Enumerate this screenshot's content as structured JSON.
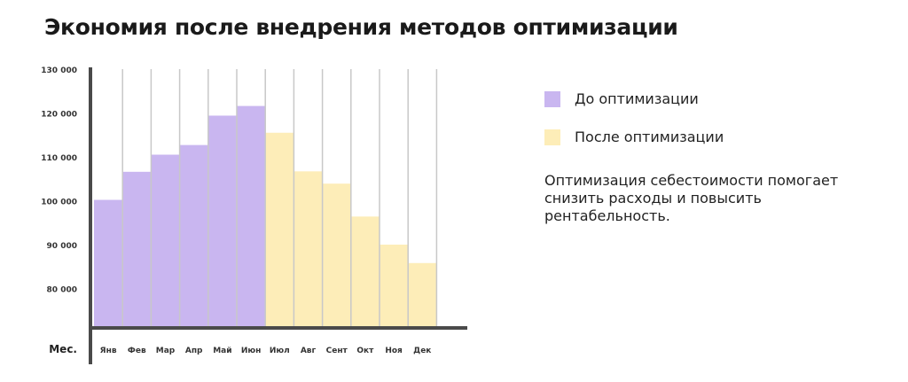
{
  "title": "Экономия после внедрения методов оптимизации",
  "legend": [
    {
      "label": "До оптимизации",
      "color": "#c9b6f0"
    },
    {
      "label": "После оптимизации",
      "color": "#fdedb8"
    }
  ],
  "description": "Оптимизация себестоимости помогает снизить расходы и повысить рентабельность.",
  "chart_data": {
    "type": "bar",
    "title": "Экономия после внедрения методов оптимизации",
    "xlabel": "Мес.",
    "ylabel": "",
    "ylim": [
      71000,
      130000
    ],
    "yticks": [
      80000,
      90000,
      100000,
      110000,
      120000,
      130000
    ],
    "ytick_labels": [
      "80 000",
      "90 000",
      "100 000",
      "110 000",
      "120 000",
      "130 000"
    ],
    "categories": [
      "Янв",
      "Фев",
      "Мар",
      "Апр",
      "Май",
      "Июн",
      "Июл",
      "Авг",
      "Сент",
      "Окт",
      "Ноя",
      "Дек"
    ],
    "values": [
      100200,
      106600,
      110500,
      112700,
      119400,
      121600,
      115500,
      106700,
      103900,
      96400,
      90000,
      85800
    ],
    "series_by_bar": [
      "До оптимизации",
      "До оптимизации",
      "До оптимизации",
      "До оптимизации",
      "До оптимизации",
      "До оптимизации",
      "После оптимизации",
      "После оптимизации",
      "После оптимизации",
      "После оптимизации",
      "После оптимизации",
      "После оптимизации"
    ],
    "legend_position": "right",
    "grid": true
  }
}
